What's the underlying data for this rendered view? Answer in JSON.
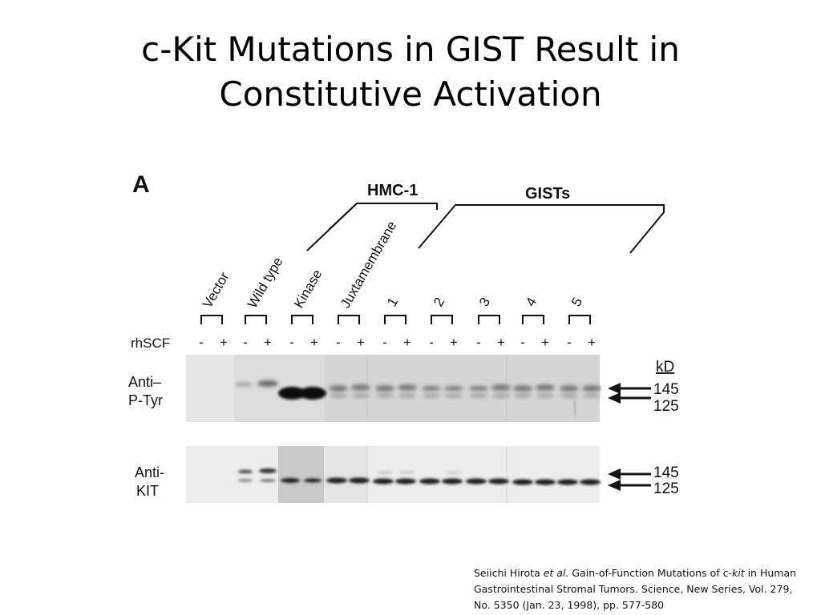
{
  "slide": {
    "title_line1": "c-Kit Mutations in GIST Result in",
    "title_line2": "Constitutive Activation"
  },
  "figure": {
    "panel_label": "A",
    "group_labels": {
      "hmc": "HMC-1",
      "gists": "GISTs"
    },
    "lane_labels": [
      "Vector",
      "Wild type",
      "Kinase",
      "Juxtamembrane",
      "1",
      "2",
      "3",
      "4",
      "5"
    ],
    "treatment_label": "rhSCF",
    "treatment_signs": [
      "-",
      "+",
      "-",
      "+",
      "-",
      "+",
      "-",
      "+",
      "-",
      "+",
      "-",
      "+",
      "-",
      "+",
      "-",
      "+",
      "-",
      "+"
    ],
    "blot_top_label_line1": "Anti–",
    "blot_top_label_line2": "P-Tyr",
    "blot_bottom_label_line1": "Anti-",
    "blot_bottom_label_line2": "KIT",
    "kd_unit": "kD",
    "marker_145": "145",
    "marker_125": "125"
  },
  "citation": {
    "author": "Seiichi Hirota ",
    "etal": "et al.",
    "part1": " Gain-of-Function Mutations of c-",
    "kit": "kit",
    "part2": " in Human Gastrointestinal Stromal Tumors. Science, New Series, Vol. 279, No. 5350 (Jan. 23, 1998), pp. 577-580"
  }
}
